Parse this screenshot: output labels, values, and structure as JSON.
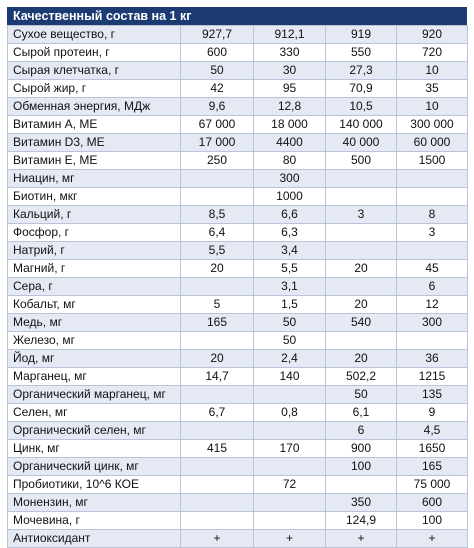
{
  "title": "Качественный состав на 1 кг",
  "rows": [
    {
      "name": "Сухое вещество, г",
      "v": [
        "927,7",
        "912,1",
        "919",
        "920"
      ]
    },
    {
      "name": "Сырой протеин, г",
      "v": [
        "600",
        "330",
        "550",
        "720"
      ]
    },
    {
      "name": "Сырая клетчатка, г",
      "v": [
        "50",
        "30",
        "27,3",
        "10"
      ]
    },
    {
      "name": "Сырой жир, г",
      "v": [
        "42",
        "95",
        "70,9",
        "35"
      ]
    },
    {
      "name": "Обменная энергия, МДж",
      "v": [
        "9,6",
        "12,8",
        "10,5",
        "10"
      ]
    },
    {
      "name": "Витамин А, МЕ",
      "v": [
        "67 000",
        "18 000",
        "140 000",
        "300 000"
      ]
    },
    {
      "name": "Витамин D3, МЕ",
      "v": [
        "17 000",
        "4400",
        "40 000",
        "60 000"
      ]
    },
    {
      "name": "Витамин Е, МЕ",
      "v": [
        "250",
        "80",
        "500",
        "1500"
      ]
    },
    {
      "name": "Ниацин, мг",
      "v": [
        "",
        "300",
        "",
        ""
      ]
    },
    {
      "name": "Биотин, мкг",
      "v": [
        "",
        "1000",
        "",
        ""
      ]
    },
    {
      "name": "Кальций, г",
      "v": [
        "8,5",
        "6,6",
        "3",
        "8"
      ]
    },
    {
      "name": "Фосфор, г",
      "v": [
        "6,4",
        "6,3",
        "",
        "3"
      ]
    },
    {
      "name": "Натрий, г",
      "v": [
        "5,5",
        "3,4",
        "",
        ""
      ]
    },
    {
      "name": "Магний, г",
      "v": [
        "20",
        "5,5",
        "20",
        "45"
      ]
    },
    {
      "name": "Сера, г",
      "v": [
        "",
        "3,1",
        "",
        "6"
      ]
    },
    {
      "name": "Кобальт, мг",
      "v": [
        "5",
        "1,5",
        "20",
        "12"
      ]
    },
    {
      "name": "Медь, мг",
      "v": [
        "165",
        "50",
        "540",
        "300"
      ]
    },
    {
      "name": "Железо, мг",
      "v": [
        "",
        "50",
        "",
        ""
      ]
    },
    {
      "name": "Йод, мг",
      "v": [
        "20",
        "2,4",
        "20",
        "36"
      ]
    },
    {
      "name": "Марганец, мг",
      "v": [
        "14,7",
        "140",
        "502,2",
        "1215"
      ]
    },
    {
      "name": "Органический марганец, мг",
      "v": [
        "",
        "",
        "50",
        "135"
      ]
    },
    {
      "name": "Селен, мг",
      "v": [
        "6,7",
        "0,8",
        "6,1",
        "9"
      ]
    },
    {
      "name": "Органический селен, мг",
      "v": [
        "",
        "",
        "6",
        "4,5"
      ]
    },
    {
      "name": "Цинк, мг",
      "v": [
        "415",
        "170",
        "900",
        "1650"
      ]
    },
    {
      "name": "Органический цинк, мг",
      "v": [
        "",
        "",
        "100",
        "165"
      ]
    },
    {
      "name": "Пробиотики, 10^6 КОЕ",
      "v": [
        "",
        "72",
        "",
        "75 000"
      ]
    },
    {
      "name": "Монензин, мг",
      "v": [
        "",
        "",
        "350",
        "600"
      ]
    },
    {
      "name": "Мочевина, г",
      "v": [
        "",
        "",
        "124,9",
        "100"
      ]
    },
    {
      "name": "Антиоксидант",
      "v": [
        "+",
        "+",
        "+",
        "+"
      ]
    }
  ]
}
